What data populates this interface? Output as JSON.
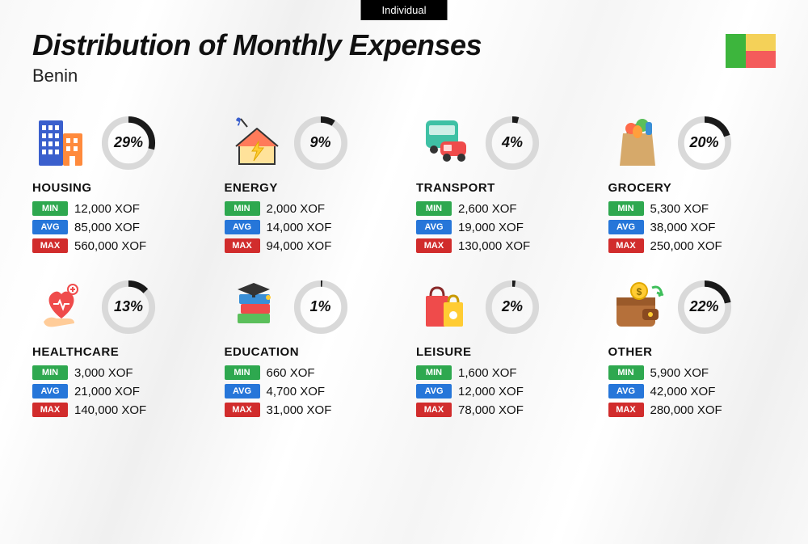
{
  "pill": "Individual",
  "title": "Distribution of Monthly Expenses",
  "country": "Benin",
  "flag_colors": {
    "green": "#3db53d",
    "yellow": "#f4d158",
    "red": "#f45b5b"
  },
  "ring": {
    "radius": 30,
    "stroke_width": 8,
    "track_color": "#d9d9d9",
    "progress_color": "#1a1a1a",
    "start_angle_deg": -90
  },
  "badges": {
    "min": {
      "label": "MIN",
      "bg": "#2ea84f"
    },
    "avg": {
      "label": "AVG",
      "bg": "#2676d9"
    },
    "max": {
      "label": "MAX",
      "bg": "#d12c2c"
    }
  },
  "currency": "XOF",
  "categories": [
    {
      "key": "housing",
      "label": "HOUSING",
      "percent": 29,
      "percent_text": "29%",
      "min": "12,000 XOF",
      "avg": "85,000 XOF",
      "max": "560,000 XOF",
      "icon": "buildings"
    },
    {
      "key": "energy",
      "label": "ENERGY",
      "percent": 9,
      "percent_text": "9%",
      "min": "2,000 XOF",
      "avg": "14,000 XOF",
      "max": "94,000 XOF",
      "icon": "house-bolt"
    },
    {
      "key": "transport",
      "label": "TRANSPORT",
      "percent": 4,
      "percent_text": "4%",
      "min": "2,600 XOF",
      "avg": "19,000 XOF",
      "max": "130,000 XOF",
      "icon": "bus-car"
    },
    {
      "key": "grocery",
      "label": "GROCERY",
      "percent": 20,
      "percent_text": "20%",
      "min": "5,300 XOF",
      "avg": "38,000 XOF",
      "max": "250,000 XOF",
      "icon": "grocery-bag"
    },
    {
      "key": "healthcare",
      "label": "HEALTHCARE",
      "percent": 13,
      "percent_text": "13%",
      "min": "3,000 XOF",
      "avg": "21,000 XOF",
      "max": "140,000 XOF",
      "icon": "heart-hand"
    },
    {
      "key": "education",
      "label": "EDUCATION",
      "percent": 1,
      "percent_text": "1%",
      "min": "660 XOF",
      "avg": "4,700 XOF",
      "max": "31,000 XOF",
      "icon": "grad-books"
    },
    {
      "key": "leisure",
      "label": "LEISURE",
      "percent": 2,
      "percent_text": "2%",
      "min": "1,600 XOF",
      "avg": "12,000 XOF",
      "max": "78,000 XOF",
      "icon": "shopping-bags"
    },
    {
      "key": "other",
      "label": "OTHER",
      "percent": 22,
      "percent_text": "22%",
      "min": "5,900 XOF",
      "avg": "42,000 XOF",
      "max": "280,000 XOF",
      "icon": "wallet"
    }
  ]
}
